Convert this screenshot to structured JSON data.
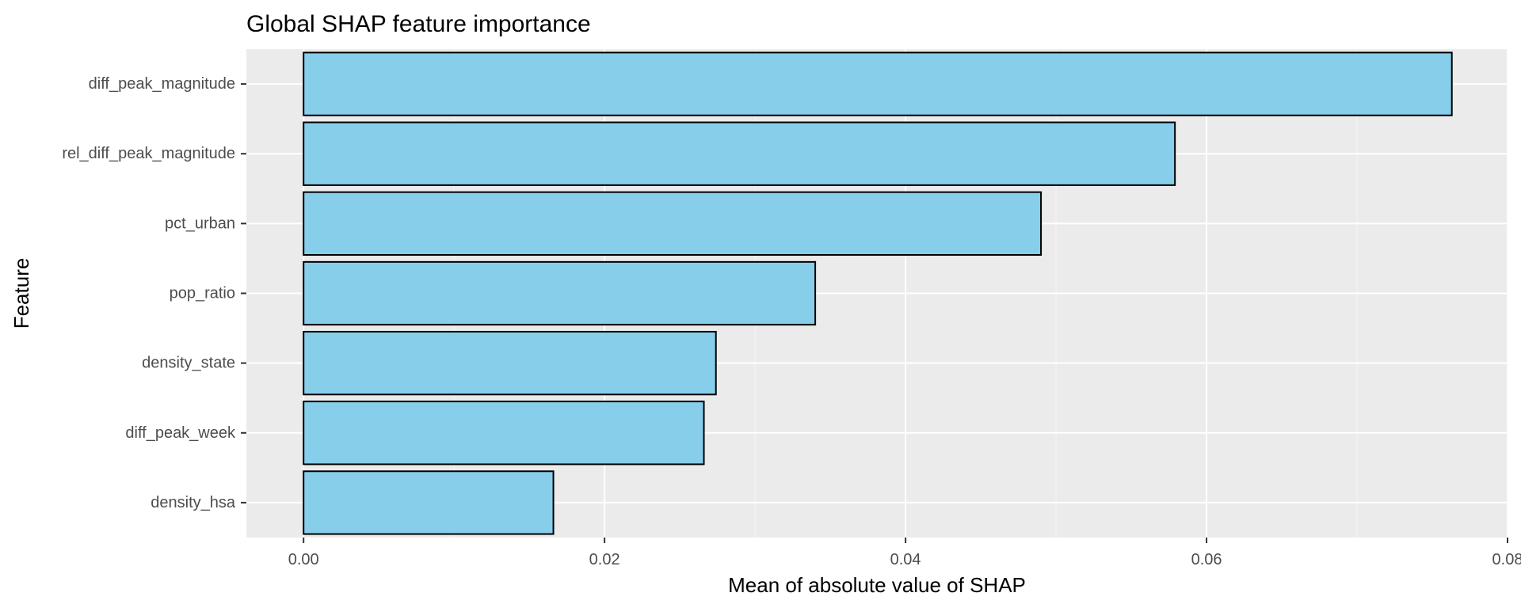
{
  "chart_data": {
    "type": "bar",
    "orientation": "horizontal",
    "title": "Global SHAP feature importance",
    "xlabel": "Mean of absolute value of SHAP",
    "ylabel": "Feature",
    "categories": [
      "diff_peak_magnitude",
      "rel_diff_peak_magnitude",
      "pct_urban",
      "pop_ratio",
      "density_state",
      "diff_peak_week",
      "density_hsa"
    ],
    "values": [
      0.0763,
      0.0579,
      0.049,
      0.034,
      0.0274,
      0.0266,
      0.0166
    ],
    "xlim": [
      -0.0038,
      0.08
    ],
    "xticks": [
      0.0,
      0.02,
      0.04,
      0.06,
      0.08
    ],
    "xtick_labels": [
      "0.00",
      "0.02",
      "0.04",
      "0.06",
      "0.08"
    ],
    "grid": true,
    "colors": {
      "bar_fill": "#87CEEB",
      "bar_stroke": "#000000",
      "panel_background": "#EBEBEB",
      "grid_major": "#FFFFFF",
      "grid_minor": "#F5F5F5"
    }
  }
}
